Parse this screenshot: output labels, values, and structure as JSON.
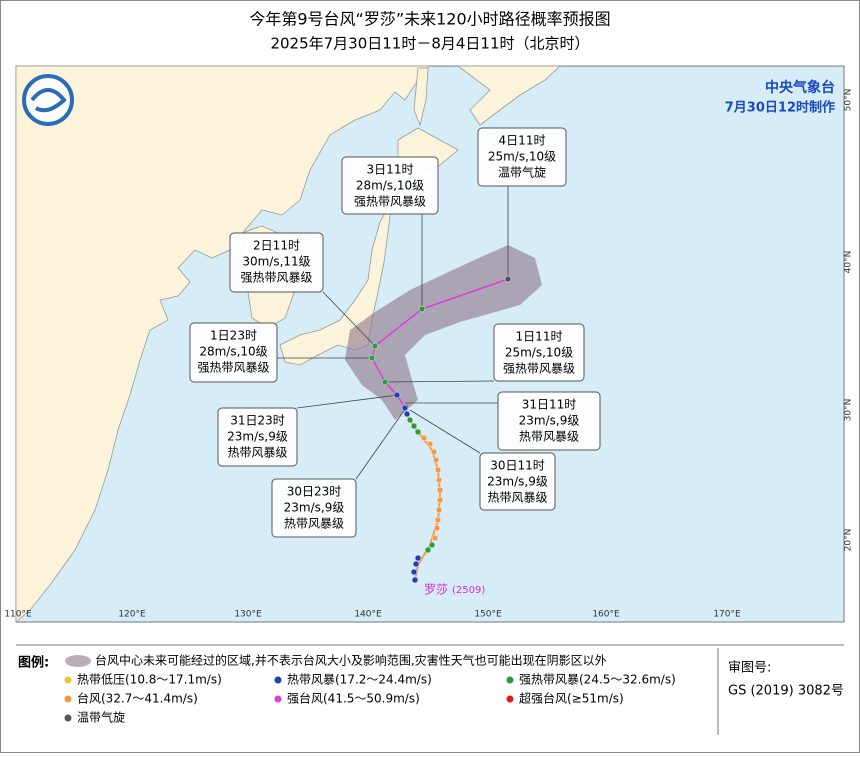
{
  "header": {
    "title": "今年第9号台风“罗莎”未来120小时路径概率预报图",
    "subtitle": "2025年7月30日11时－8月4日11时（北京时）"
  },
  "agency": {
    "name": "中央气象台",
    "made": "7月30日12时制作"
  },
  "map": {
    "lon_labels": [
      "110°E",
      "120°E",
      "130°E",
      "140°E",
      "150°E",
      "160°E",
      "170°E"
    ],
    "lat_labels": [
      "50°N",
      "40°N",
      "30°N",
      "20°N"
    ],
    "storm_name": "罗莎",
    "storm_id": "(2509)",
    "forecasts": [
      {
        "time": "4日11时",
        "wind": "25m/s,10级",
        "level": "温带气旋"
      },
      {
        "time": "3日11时",
        "wind": "28m/s,10级",
        "level": "强热带风暴级"
      },
      {
        "time": "2日11时",
        "wind": "30m/s,11级",
        "level": "强热带风暴级"
      },
      {
        "time": "1日23时",
        "wind": "28m/s,10级",
        "level": "强热带风暴级"
      },
      {
        "time": "1日11时",
        "wind": "25m/s,10级",
        "level": "强热带风暴级"
      },
      {
        "time": "31日11时",
        "wind": "23m/s,9级",
        "level": "热带风暴级"
      },
      {
        "time": "31日23时",
        "wind": "23m/s,9级",
        "level": "热带风暴级"
      },
      {
        "time": "30日11时",
        "wind": "23m/s,9级",
        "level": "热带风暴级"
      },
      {
        "time": "30日23时",
        "wind": "23m/s,9级",
        "level": "热带风暴级"
      }
    ]
  },
  "legend": {
    "heading": "图例:",
    "cone": "台风中心未来可能经过的区域,并不表示台风大小及影响范围,灾害性天气也可能出现在阴影区以外",
    "items": [
      {
        "label": "热带低压(10.8～17.1m/s)",
        "color": "#f2c531"
      },
      {
        "label": "热带风暴(17.2～24.4m/s)",
        "color": "#1f3fb5"
      },
      {
        "label": "强热带风暴(24.5～32.6m/s)",
        "color": "#2e9a3a"
      },
      {
        "label": "台风(32.7～41.4m/s)",
        "color": "#f39a4a"
      },
      {
        "label": "强台风(41.5～50.9m/s)",
        "color": "#e43ad8"
      },
      {
        "label": "超强台风(≥51m/s)",
        "color": "#e31a1a"
      },
      {
        "label": "温带气旋",
        "color": "#555555"
      }
    ]
  },
  "approval": {
    "label": "审图号:",
    "number": "GS (2019) 3082号"
  }
}
